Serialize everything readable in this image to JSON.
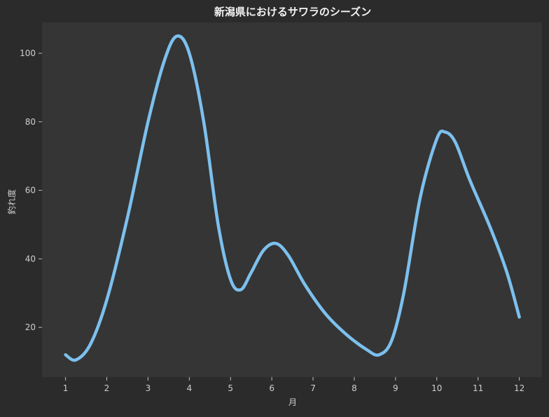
{
  "chart_data": {
    "type": "line",
    "title": "新潟県におけるサワラのシーズン",
    "xlabel": "月",
    "ylabel": "釣れ度",
    "x": [
      1,
      2,
      3,
      4,
      5,
      6,
      7,
      8,
      9,
      10,
      11,
      12
    ],
    "xlim": [
      0.43,
      12.55
    ],
    "ylim": [
      5.5,
      109
    ],
    "xticks": [
      1,
      2,
      3,
      4,
      5,
      6,
      7,
      8,
      9,
      10,
      11,
      12
    ],
    "yticks": [
      20,
      40,
      60,
      80,
      100
    ],
    "grid": false,
    "series": [
      {
        "color": "#7cc0ee",
        "points": [
          [
            1.0,
            12
          ],
          [
            1.25,
            10.5
          ],
          [
            1.6,
            15
          ],
          [
            2.0,
            28
          ],
          [
            2.5,
            52
          ],
          [
            3.0,
            80
          ],
          [
            3.4,
            98
          ],
          [
            3.7,
            105
          ],
          [
            4.0,
            100
          ],
          [
            4.35,
            80
          ],
          [
            4.7,
            50
          ],
          [
            5.0,
            34
          ],
          [
            5.25,
            31
          ],
          [
            5.5,
            36
          ],
          [
            5.8,
            42.5
          ],
          [
            6.1,
            44.5
          ],
          [
            6.4,
            41
          ],
          [
            6.8,
            32.5
          ],
          [
            7.3,
            24
          ],
          [
            7.8,
            18
          ],
          [
            8.3,
            13.5
          ],
          [
            8.6,
            12
          ],
          [
            8.9,
            16
          ],
          [
            9.2,
            30
          ],
          [
            9.6,
            58
          ],
          [
            10.0,
            75
          ],
          [
            10.2,
            77
          ],
          [
            10.45,
            74
          ],
          [
            10.8,
            63
          ],
          [
            11.3,
            49
          ],
          [
            11.7,
            36
          ],
          [
            12.0,
            23
          ]
        ]
      }
    ]
  }
}
